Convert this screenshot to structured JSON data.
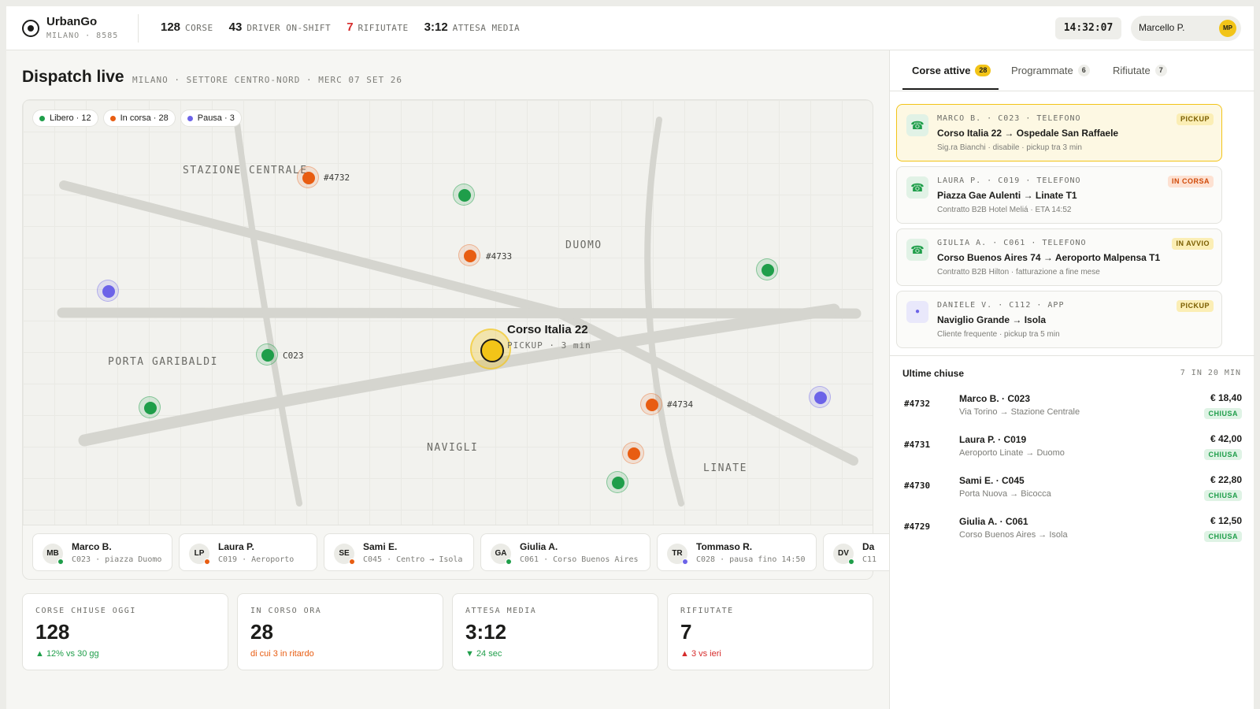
{
  "brand": {
    "name": "UrbanGo",
    "sub": "MILANO · 8585"
  },
  "top_stats": [
    {
      "value": "128",
      "label": "CORSE"
    },
    {
      "value": "43",
      "label": "DRIVER ON-SHIFT"
    },
    {
      "value": "7",
      "label": "RIFIUTATE"
    },
    {
      "value": "3:12",
      "label": "ATTESA MEDIA"
    }
  ],
  "clock": "14:32:07",
  "user": {
    "name": "Marcello P.",
    "initials": "MP"
  },
  "page": {
    "title": "Dispatch live",
    "subtitle": "MILANO · SETTORE CENTRO-NORD · MERC 07 SET 26"
  },
  "legend": [
    {
      "label": "Libero · 12",
      "color": "#1f9e4a"
    },
    {
      "label": "In corsa · 28",
      "color": "#e85d12"
    },
    {
      "label": "Pausa · 3",
      "color": "#6c63e8"
    }
  ],
  "districts": [
    "STAZIONE CENTRALE",
    "DUOMO",
    "PORTA GARIBALDI",
    "NAVIGLI",
    "LINATE"
  ],
  "marker_labels": {
    "m1": "#4732",
    "m2": "#4733",
    "m3": "C023",
    "m4": "#4734"
  },
  "pickup": {
    "title": "Corso Italia 22",
    "sub": "PICKUP · 3 min"
  },
  "drivers": [
    {
      "initials": "MB",
      "name": "Marco B.",
      "detail": "C023 · piazza Duomo",
      "status_color": "#1f9e4a"
    },
    {
      "initials": "LP",
      "name": "Laura P.",
      "detail": "C019 · Aeroporto",
      "status_color": "#e85d12"
    },
    {
      "initials": "SE",
      "name": "Sami E.",
      "detail": "C045 · Centro → Isola",
      "status_color": "#e85d12"
    },
    {
      "initials": "GA",
      "name": "Giulia A.",
      "detail": "C061 · Corso Buenos Aires",
      "status_color": "#1f9e4a"
    },
    {
      "initials": "TR",
      "name": "Tommaso R.",
      "detail": "C028 · pausa fino 14:50",
      "status_color": "#6c63e8"
    },
    {
      "initials": "DV",
      "name": "Da",
      "detail": "C11",
      "status_color": "#1f9e4a"
    }
  ],
  "kpis": [
    {
      "label": "CORSE CHIUSE OGGI",
      "value": "128",
      "trend": "▲ 12% vs 30 gg"
    },
    {
      "label": "IN CORSO ORA",
      "value": "28",
      "trend": "di cui 3 in ritardo"
    },
    {
      "label": "ATTESA MEDIA",
      "value": "3:12",
      "trend": "▼ 24 sec"
    },
    {
      "label": "RIFIUTATE",
      "value": "7",
      "trend": "▲ 3 vs ieri"
    }
  ],
  "tabs": [
    {
      "label": "Corse attive",
      "count": "28"
    },
    {
      "label": "Programmate",
      "count": "6"
    },
    {
      "label": "Rifiutate",
      "count": "7"
    }
  ],
  "rides": [
    {
      "icon": "☎",
      "meta": "MARCO B. · C023 · TELEFONO",
      "route": "Corso Italia 22 → Ospedale San Raffaele",
      "note": "Sig.ra Bianchi · disabile · pickup tra 3 min",
      "badge": "PICKUP"
    },
    {
      "icon": "☎",
      "meta": "LAURA P. · C019 · TELEFONO",
      "route": "Piazza Gae Aulenti → Linate T1",
      "note": "Contratto B2B Hotel Meliá · ETA 14:52",
      "badge": "IN CORSA"
    },
    {
      "icon": "☎",
      "meta": "GIULIA A. · C061 · TELEFONO",
      "route": "Corso Buenos Aires 74 → Aeroporto Malpensa T1",
      "note": "Contratto B2B Hilton · fatturazione a fine mese",
      "badge": "IN AVVIO"
    },
    {
      "icon": "●",
      "meta": "DANIELE V. · C112 · APP",
      "route": "Naviglio Grande → Isola",
      "note": "Cliente frequente · pickup tra 5 min",
      "badge": "PICKUP"
    }
  ],
  "closed": {
    "title": "Ultime chiuse",
    "count": "7 IN 20 MIN",
    "items": [
      {
        "id": "#4732",
        "name": "Marco B. · C023",
        "route": "Via Torino → Stazione Centrale",
        "price": "€ 18,40",
        "badge": "CHIUSA"
      },
      {
        "id": "#4731",
        "name": "Laura P. · C019",
        "route": "Aeroporto Linate → Duomo",
        "price": "€ 42,00",
        "badge": "CHIUSA"
      },
      {
        "id": "#4730",
        "name": "Sami E. · C045",
        "route": "Porta Nuova → Bicocca",
        "price": "€ 22,80",
        "badge": "CHIUSA"
      },
      {
        "id": "#4729",
        "name": "Giulia A. · C061",
        "route": "Corso Buenos Aires → Isola",
        "price": "€ 12,50",
        "badge": "CHIUSA"
      }
    ]
  }
}
